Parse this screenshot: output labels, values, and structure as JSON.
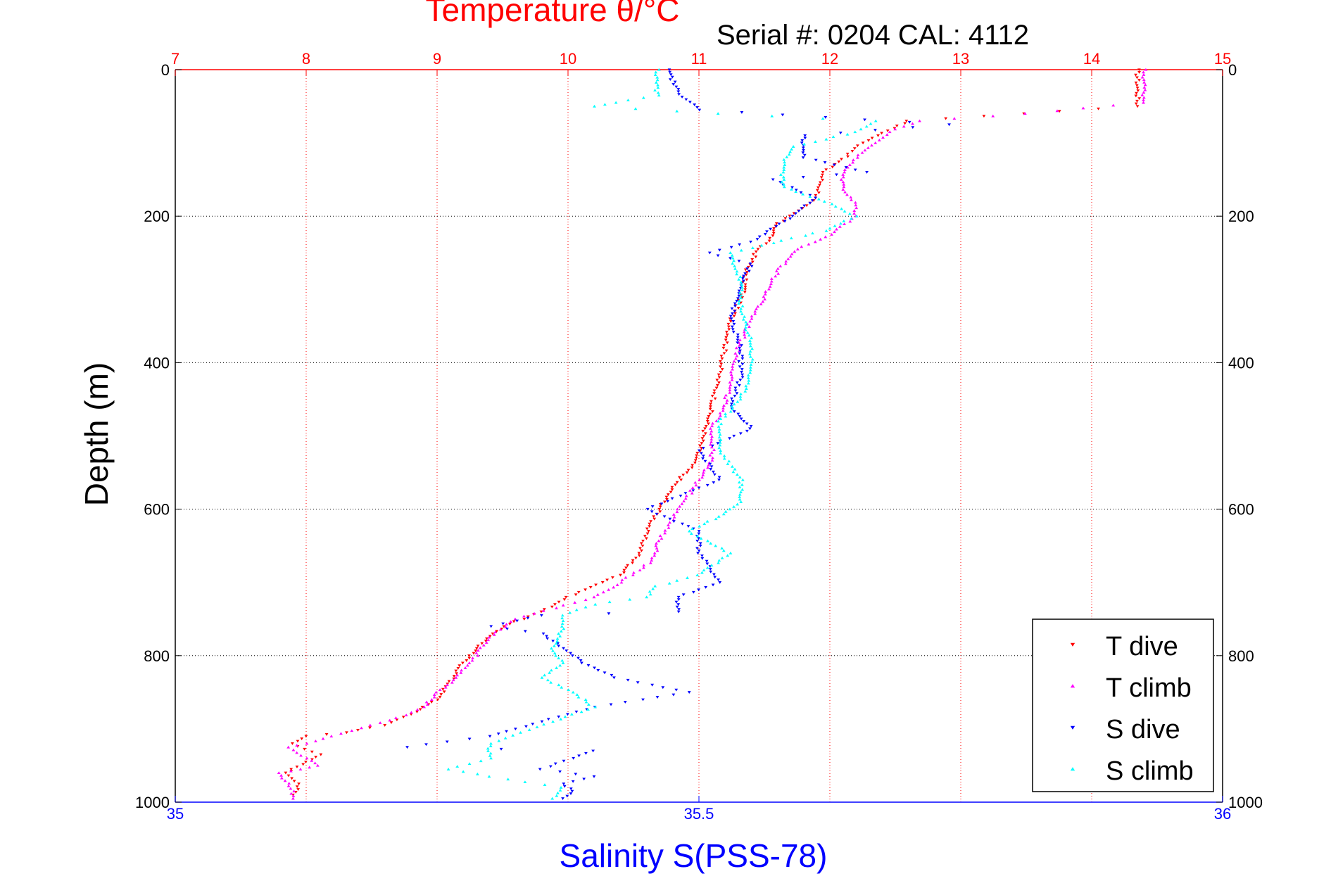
{
  "chart_data": {
    "type": "scatter",
    "title": "Temperature θ/°C",
    "subtitle": "Serial #: 0204  CAL: 4112",
    "xlabel": "Salinity S(PSS-78)",
    "ylabel": "Depth (m)",
    "x_top": {
      "range": [
        7,
        15
      ],
      "ticks": [
        "7",
        "8",
        "9",
        "10",
        "11",
        "12",
        "13",
        "14",
        "15"
      ],
      "color": "#ff0000",
      "grid": true
    },
    "x_bottom": {
      "range": [
        35,
        36
      ],
      "ticks": [
        "35",
        "35.5",
        "36"
      ],
      "color": "#0000ff"
    },
    "y": {
      "range": [
        0,
        1000
      ],
      "reversed": true,
      "ticks": [
        "0",
        "200",
        "400",
        "600",
        "800",
        "1000"
      ],
      "grid": true
    },
    "legend_position": "bottom-right",
    "series": [
      {
        "name": "T dive",
        "axis": "top",
        "color": "#ff0000",
        "marker": "triangle-down",
        "points": [
          [
            14.35,
            0
          ],
          [
            14.35,
            50
          ],
          [
            12.6,
            70
          ],
          [
            12.25,
            100
          ],
          [
            12.15,
            115
          ],
          [
            11.95,
            140
          ],
          [
            11.9,
            175
          ],
          [
            11.6,
            210
          ],
          [
            11.55,
            230
          ],
          [
            11.45,
            245
          ],
          [
            11.35,
            280
          ],
          [
            11.35,
            300
          ],
          [
            11.25,
            340
          ],
          [
            11.2,
            380
          ],
          [
            11.15,
            420
          ],
          [
            11.1,
            460
          ],
          [
            11.05,
            490
          ],
          [
            11.0,
            520
          ],
          [
            10.95,
            540
          ],
          [
            10.8,
            570
          ],
          [
            10.7,
            600
          ],
          [
            10.6,
            630
          ],
          [
            10.55,
            660
          ],
          [
            10.4,
            690
          ],
          [
            10.0,
            720
          ],
          [
            9.8,
            740
          ],
          [
            9.5,
            760
          ],
          [
            9.3,
            790
          ],
          [
            9.2,
            810
          ],
          [
            9.1,
            835
          ],
          [
            9.0,
            860
          ],
          [
            8.8,
            880
          ],
          [
            8.6,
            895
          ],
          [
            8.3,
            905
          ],
          [
            8.0,
            910
          ],
          [
            7.9,
            920
          ],
          [
            8.1,
            935
          ],
          [
            8.0,
            945
          ],
          [
            7.9,
            955
          ],
          [
            7.85,
            960
          ],
          [
            7.95,
            975
          ],
          [
            7.9,
            990
          ]
        ]
      },
      {
        "name": "T climb",
        "axis": "top",
        "color": "#ff00ff",
        "marker": "triangle-up",
        "points": [
          [
            14.4,
            0
          ],
          [
            14.4,
            45
          ],
          [
            13.5,
            60
          ],
          [
            12.7,
            70
          ],
          [
            12.45,
            85
          ],
          [
            12.35,
            100
          ],
          [
            12.2,
            120
          ],
          [
            12.1,
            140
          ],
          [
            12.1,
            160
          ],
          [
            12.2,
            185
          ],
          [
            12.2,
            200
          ],
          [
            12.0,
            225
          ],
          [
            11.75,
            245
          ],
          [
            11.6,
            275
          ],
          [
            11.5,
            310
          ],
          [
            11.4,
            340
          ],
          [
            11.3,
            380
          ],
          [
            11.25,
            420
          ],
          [
            11.2,
            455
          ],
          [
            11.1,
            490
          ],
          [
            11.1,
            530
          ],
          [
            11.0,
            560
          ],
          [
            10.85,
            600
          ],
          [
            10.7,
            640
          ],
          [
            10.65,
            670
          ],
          [
            10.4,
            700
          ],
          [
            10.2,
            720
          ],
          [
            9.9,
            735
          ],
          [
            9.6,
            750
          ],
          [
            9.4,
            775
          ],
          [
            9.3,
            800
          ],
          [
            9.15,
            830
          ],
          [
            9.0,
            850
          ],
          [
            8.9,
            870
          ],
          [
            8.7,
            885
          ],
          [
            8.5,
            895
          ],
          [
            8.2,
            910
          ],
          [
            8.0,
            920
          ],
          [
            7.85,
            925
          ],
          [
            8.0,
            940
          ],
          [
            8.1,
            950
          ],
          [
            7.95,
            955
          ],
          [
            7.8,
            960
          ],
          [
            7.9,
            985
          ],
          [
            7.9,
            995
          ]
        ]
      },
      {
        "name": "S dive",
        "axis": "bottom",
        "color": "#0000ff",
        "marker": "triangle-down",
        "points": [
          [
            35.47,
            0
          ],
          [
            35.48,
            30
          ],
          [
            35.5,
            55
          ],
          [
            35.62,
            65
          ],
          [
            35.74,
            75
          ],
          [
            35.6,
            90
          ],
          [
            35.6,
            120
          ],
          [
            35.66,
            140
          ],
          [
            35.57,
            150
          ],
          [
            35.61,
            175
          ],
          [
            35.59,
            200
          ],
          [
            35.55,
            235
          ],
          [
            35.51,
            250
          ],
          [
            35.55,
            265
          ],
          [
            35.54,
            295
          ],
          [
            35.53,
            340
          ],
          [
            35.54,
            380
          ],
          [
            35.54,
            420
          ],
          [
            35.53,
            460
          ],
          [
            35.55,
            490
          ],
          [
            35.5,
            520
          ],
          [
            35.52,
            560
          ],
          [
            35.45,
            600
          ],
          [
            35.5,
            630
          ],
          [
            35.5,
            660
          ],
          [
            35.52,
            700
          ],
          [
            35.48,
            720
          ],
          [
            35.48,
            740
          ],
          [
            35.35,
            745
          ],
          [
            35.3,
            760
          ],
          [
            35.35,
            770
          ],
          [
            35.37,
            790
          ],
          [
            35.39,
            810
          ],
          [
            35.42,
            830
          ],
          [
            35.49,
            850
          ],
          [
            35.4,
            870
          ],
          [
            35.35,
            890
          ],
          [
            35.3,
            910
          ],
          [
            35.22,
            925
          ],
          [
            35.4,
            930
          ],
          [
            35.38,
            940
          ],
          [
            35.35,
            955
          ],
          [
            35.4,
            965
          ],
          [
            35.37,
            975
          ],
          [
            35.38,
            985
          ],
          [
            35.37,
            995
          ]
        ]
      },
      {
        "name": "S climb",
        "axis": "bottom",
        "color": "#00ffff",
        "marker": "triangle-up",
        "points": [
          [
            35.46,
            0
          ],
          [
            35.46,
            35
          ],
          [
            35.42,
            45
          ],
          [
            35.4,
            50
          ],
          [
            35.52,
            60
          ],
          [
            35.67,
            70
          ],
          [
            35.65,
            85
          ],
          [
            35.59,
            105
          ],
          [
            35.58,
            130
          ],
          [
            35.58,
            160
          ],
          [
            35.62,
            180
          ],
          [
            35.65,
            200
          ],
          [
            35.62,
            220
          ],
          [
            35.53,
            250
          ],
          [
            35.54,
            290
          ],
          [
            35.54,
            330
          ],
          [
            35.55,
            370
          ],
          [
            35.55,
            410
          ],
          [
            35.54,
            450
          ],
          [
            35.52,
            480
          ],
          [
            35.52,
            520
          ],
          [
            35.54,
            560
          ],
          [
            35.54,
            590
          ],
          [
            35.52,
            610
          ],
          [
            35.49,
            630
          ],
          [
            35.53,
            660
          ],
          [
            35.5,
            690
          ],
          [
            35.46,
            705
          ],
          [
            35.45,
            720
          ],
          [
            35.4,
            730
          ],
          [
            35.37,
            745
          ],
          [
            35.37,
            760
          ],
          [
            35.36,
            790
          ],
          [
            35.37,
            810
          ],
          [
            35.35,
            830
          ],
          [
            35.38,
            850
          ],
          [
            35.4,
            870
          ],
          [
            35.36,
            890
          ],
          [
            35.33,
            905
          ],
          [
            35.3,
            920
          ],
          [
            35.3,
            940
          ],
          [
            35.26,
            955
          ],
          [
            35.3,
            965
          ],
          [
            35.37,
            980
          ],
          [
            35.36,
            995
          ]
        ]
      }
    ]
  }
}
